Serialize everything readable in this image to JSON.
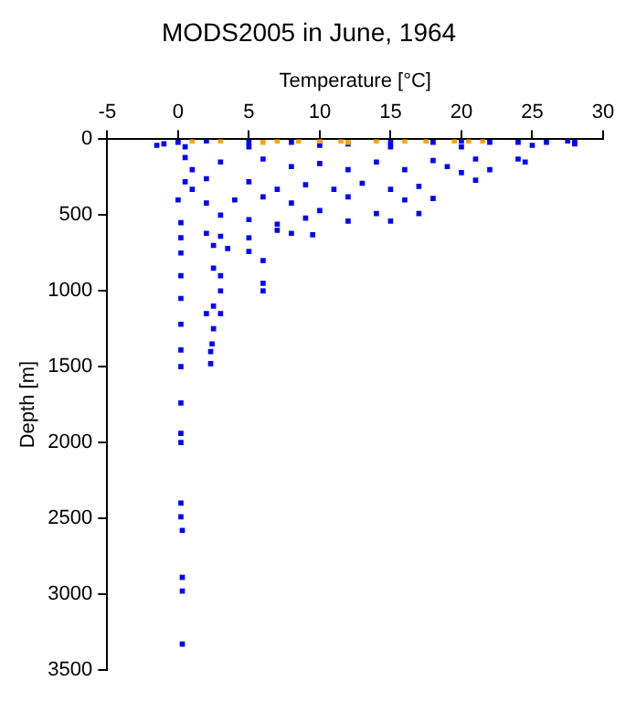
{
  "chart_data": {
    "type": "scatter",
    "title": "MODS2005 in June, 1964",
    "xlabel": "Temperature [°C]",
    "ylabel": "Depth [m]",
    "xlim": [
      -5,
      30
    ],
    "xticks": [
      -5,
      0,
      5,
      10,
      15,
      20,
      25,
      30
    ],
    "ylim": [
      3500,
      0
    ],
    "yticks": [
      0,
      500,
      1000,
      1500,
      2000,
      2500,
      3000,
      3500
    ],
    "grid": false,
    "legend": false,
    "marker": "square",
    "series": [
      {
        "color": "#0000ff",
        "x": [
          -1.5,
          -1,
          0,
          2,
          5,
          8,
          10,
          12,
          15,
          18,
          20,
          22,
          24,
          26,
          27.5,
          28,
          28,
          25,
          20,
          15,
          10,
          5,
          0.5,
          0.5,
          3,
          6,
          10,
          14,
          18,
          21,
          24,
          24.5,
          22,
          19,
          16,
          12,
          8,
          1,
          20,
          0.5,
          2,
          5,
          9,
          13,
          17,
          21,
          15,
          11,
          7,
          1,
          0,
          2,
          4,
          6,
          8,
          12,
          16,
          18,
          10,
          14,
          17,
          9,
          12,
          15,
          3,
          5,
          0.2,
          7,
          0.2,
          2,
          3,
          5,
          7,
          8,
          9.5,
          0.2,
          2.5,
          3.5,
          5,
          6,
          2.5,
          3,
          6,
          6,
          0.2,
          3,
          0.2,
          2.5,
          3,
          2,
          2.5,
          2.4,
          2.3,
          2.3,
          0.2,
          0.2,
          0.2,
          0.2,
          0.2,
          0.2,
          0.2,
          0.2,
          0.3,
          0.3,
          0.3,
          0.3
        ],
        "values": [
          40,
          30,
          20,
          10,
          20,
          20,
          10,
          30,
          20,
          20,
          10,
          20,
          20,
          20,
          10,
          20,
          30,
          40,
          50,
          50,
          40,
          50,
          50,
          120,
          150,
          130,
          160,
          150,
          140,
          130,
          130,
          150,
          200,
          180,
          200,
          200,
          180,
          200,
          220,
          280,
          260,
          280,
          300,
          290,
          310,
          270,
          330,
          330,
          330,
          330,
          400,
          420,
          400,
          380,
          420,
          380,
          400,
          390,
          470,
          490,
          490,
          520,
          540,
          540,
          500,
          530,
          550,
          560,
          650,
          620,
          640,
          650,
          600,
          620,
          630,
          750,
          700,
          720,
          740,
          800,
          850,
          900,
          950,
          1000,
          900,
          1000,
          1050,
          1100,
          1150,
          1150,
          1250,
          1350,
          1400,
          1480,
          1220,
          1390,
          1500,
          1740,
          1940,
          2000,
          2400,
          2490,
          2580,
          2890,
          2980,
          3330
        ]
      },
      {
        "color": "#ffa500",
        "x": [
          1,
          3,
          6,
          7,
          8.5,
          10,
          11.5,
          12,
          14,
          16,
          17.5,
          19.5,
          20.5,
          21.5
        ],
        "values": [
          10,
          10,
          20,
          10,
          10,
          10,
          10,
          20,
          10,
          10,
          10,
          10,
          10,
          10
        ]
      }
    ]
  }
}
